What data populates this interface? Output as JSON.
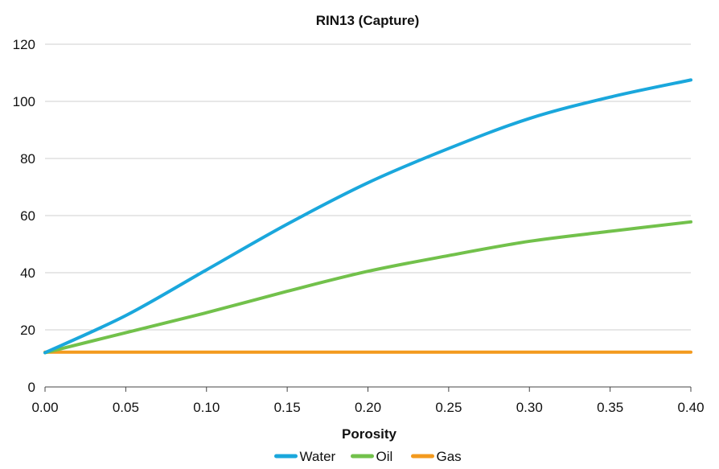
{
  "chart_data": {
    "type": "line",
    "title": "RIN13 (Capture)",
    "xlabel": "Porosity",
    "ylabel": "",
    "xlim": [
      0.0,
      0.4
    ],
    "ylim": [
      0,
      120
    ],
    "x_ticks": [
      "0.00",
      "0.05",
      "0.10",
      "0.15",
      "0.20",
      "0.25",
      "0.30",
      "0.35",
      "0.40"
    ],
    "y_ticks": [
      "0",
      "20",
      "40",
      "60",
      "80",
      "100",
      "120"
    ],
    "grid": "horizontal",
    "legend_position": "bottom",
    "x": [
      0.0,
      0.05,
      0.1,
      0.15,
      0.2,
      0.25,
      0.3,
      0.35,
      0.4
    ],
    "series": [
      {
        "name": "Water",
        "color": "#1aa7dc",
        "values": [
          12,
          25,
          41,
          57,
          71.5,
          83.5,
          94,
          101.5,
          107.5
        ]
      },
      {
        "name": "Oil",
        "color": "#72c14b",
        "values": [
          12,
          19,
          26,
          33.5,
          40.5,
          46,
          51,
          54.5,
          57.8
        ]
      },
      {
        "name": "Gas",
        "color": "#f39a1e",
        "values": [
          12.2,
          12.2,
          12.2,
          12.2,
          12.2,
          12.2,
          12.2,
          12.2,
          12.2
        ]
      }
    ]
  }
}
